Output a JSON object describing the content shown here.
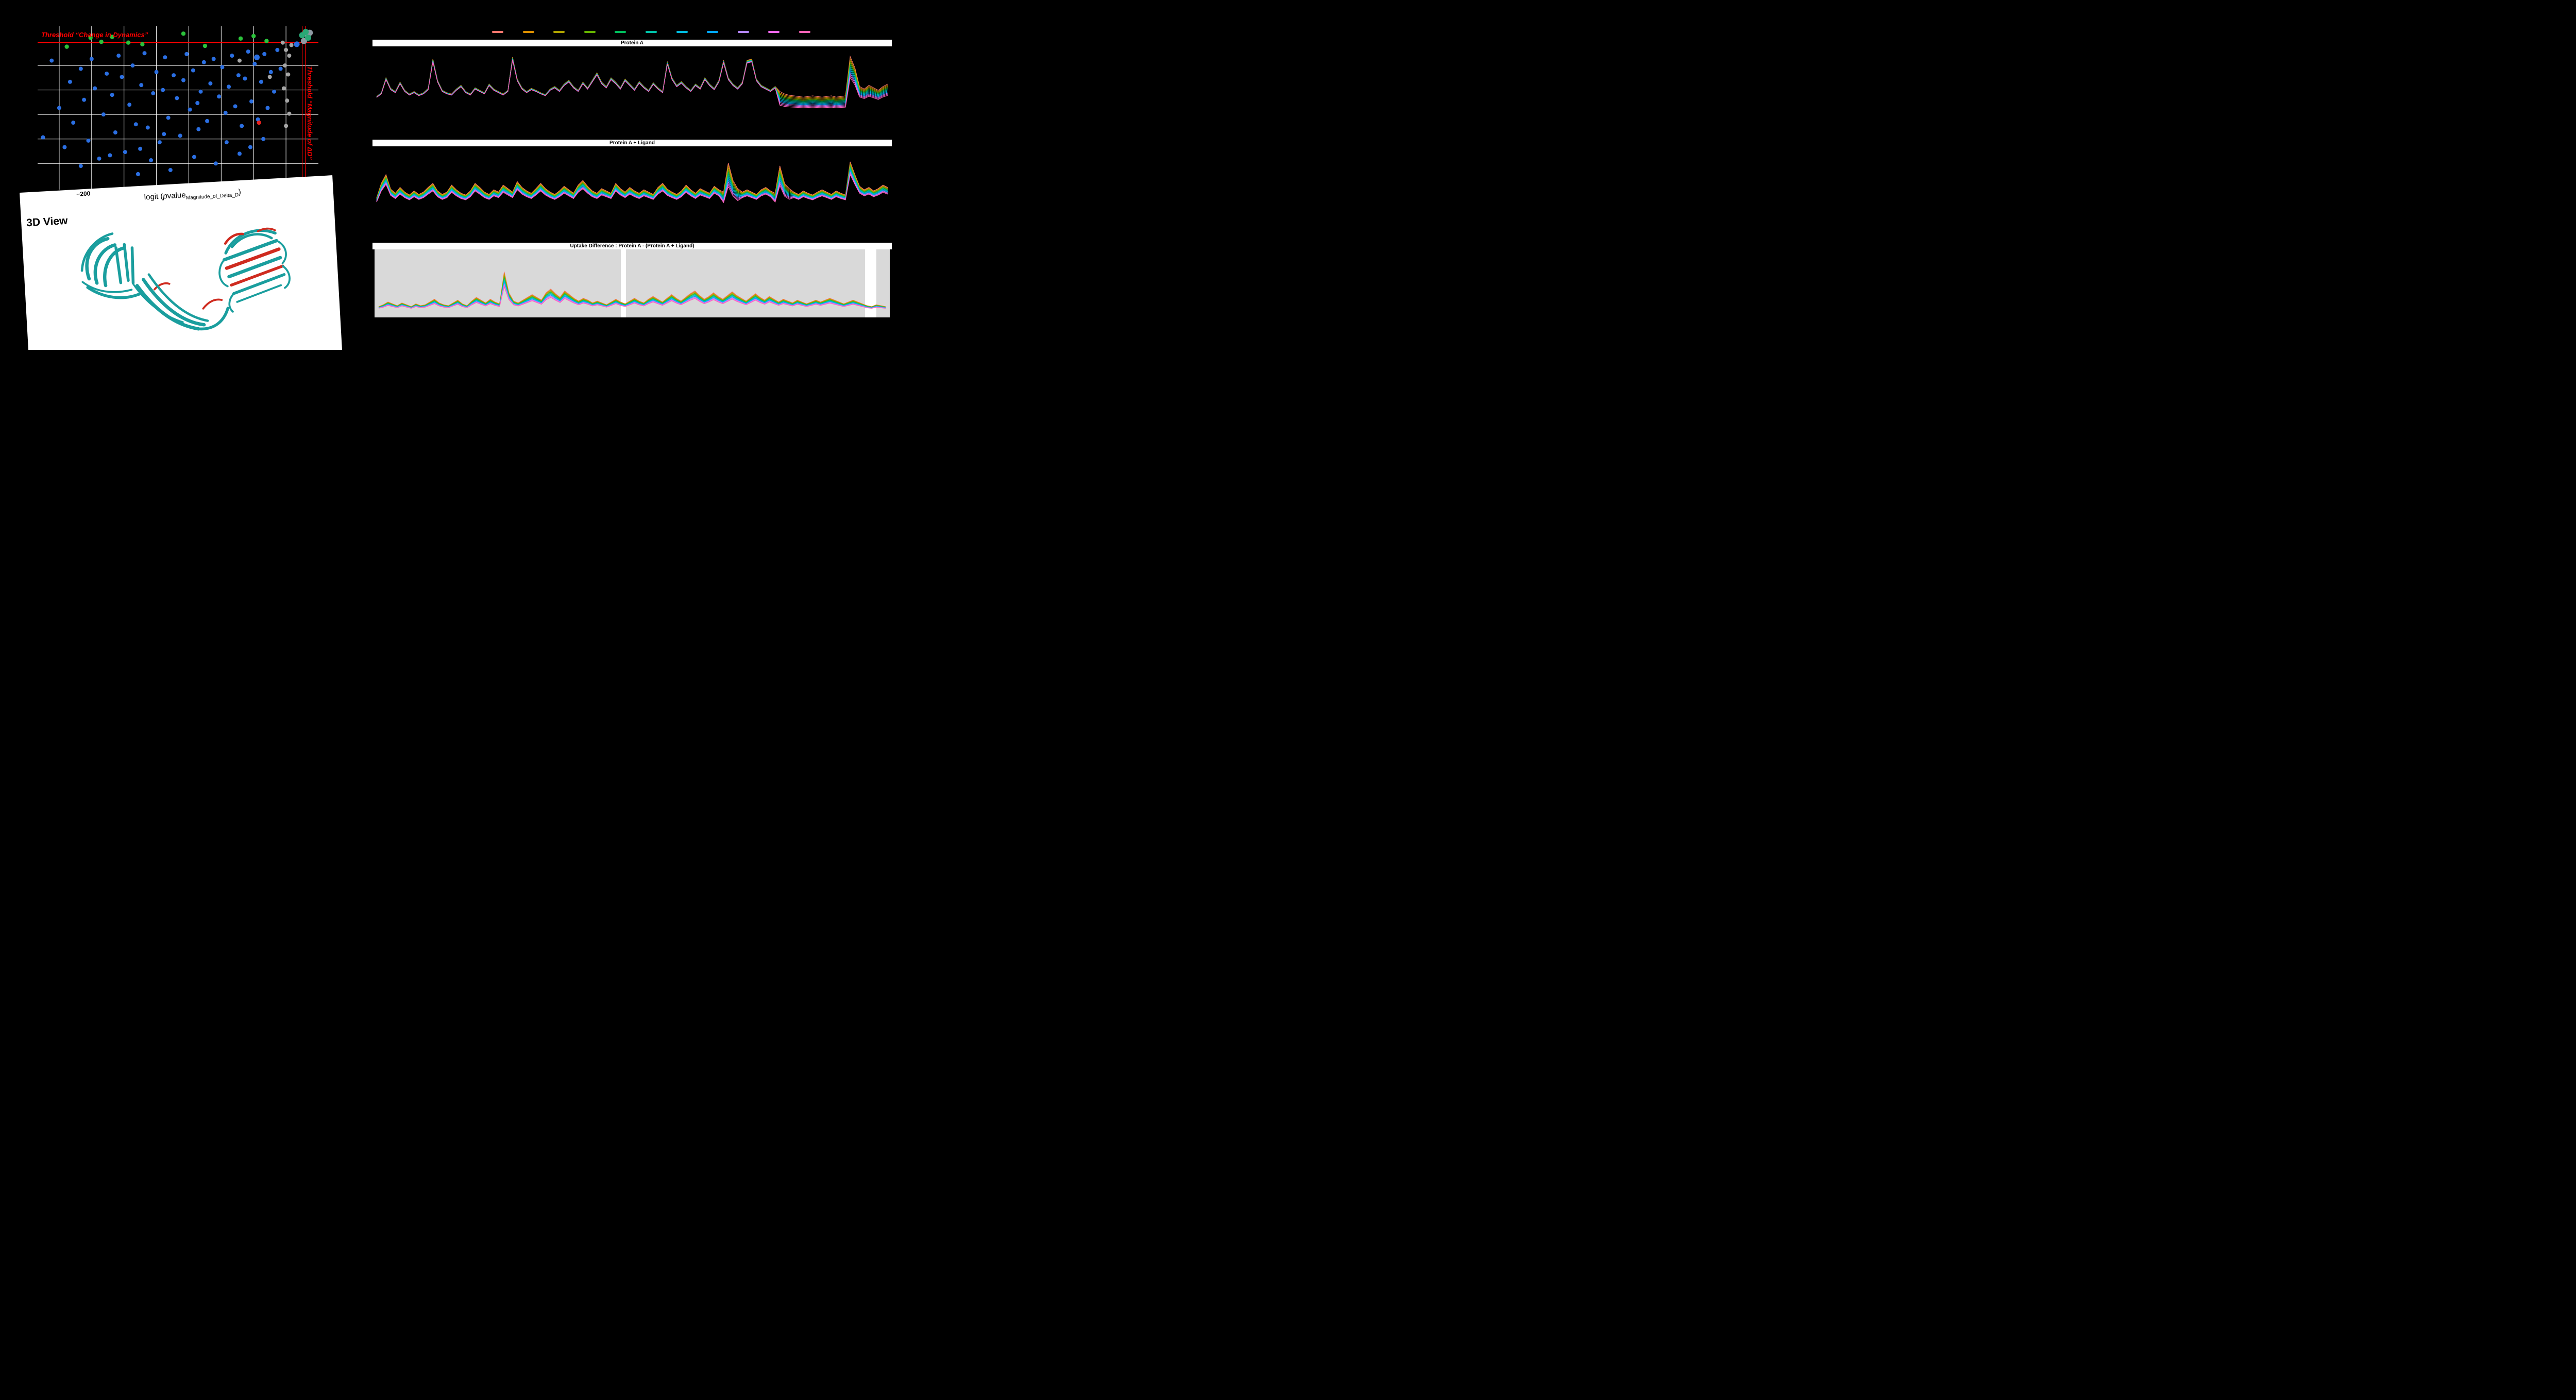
{
  "volcano": {
    "threshold_dynamics_label": "Threshold “Change in Dynamics”",
    "threshold_magnitude_label": "Threshold “Magnitude of ΔD”",
    "x_tick": "−200",
    "xlabel": {
      "pre": "logit (",
      "italic_p": "p",
      "mid": "value",
      "sub": "Magnitude_of_Delta_D",
      "post": ")"
    }
  },
  "view3d": {
    "title": "3D View",
    "ribbon_teal": "#1a9e9e",
    "ribbon_red": "#cf2b1f"
  },
  "panels": [
    {
      "title": "Protein A"
    },
    {
      "title": "Protein A + Ligand"
    },
    {
      "title": "Uptake Difference : Protein A - (Protein A + Ligand)"
    }
  ],
  "legend": {
    "colors": [
      "#F8766D",
      "#DB8E00",
      "#AEA200",
      "#64B200",
      "#00BD5C",
      "#00C1A7",
      "#00BADE",
      "#00A6FF",
      "#B385FF",
      "#EF67EB",
      "#FF63B6"
    ]
  },
  "chart_data": [
    {
      "type": "scatter",
      "name": "volcano-significance-plot",
      "xlabel": "logit (pvalue_Magnitude_of_Delta_D)",
      "ylabel": "",
      "xlim": [
        -245,
        15
      ],
      "ylim": [
        0,
        10
      ],
      "x_gridlines": [
        -225,
        -195,
        -165,
        -135,
        -105,
        -75,
        -45,
        -15
      ],
      "y_gridlines": [
        1.6,
        3.1,
        4.6,
        6.1,
        7.6
      ],
      "threshold_y": 9.0,
      "threshold_x": [
        0,
        3
      ],
      "grid_color": "#ffffff",
      "threshold_color": "#ff0000",
      "colors": {
        "blue": "#2b6fe3",
        "blue_large": "#2b6fe3",
        "green": "#2bc23a",
        "gray": "#a6a6a6",
        "red": "#e8211d",
        "cluster_green": "#2aa876",
        "cluster_gray": "#8f9aa3"
      },
      "points": {
        "blue": [
          [
            -240,
            3.2
          ],
          [
            -232,
            7.9
          ],
          [
            -225,
            5.0
          ],
          [
            -220,
            2.6
          ],
          [
            -215,
            6.6
          ],
          [
            -212,
            4.1
          ],
          [
            -205,
            7.4
          ],
          [
            -205,
            1.45
          ],
          [
            -202,
            5.5
          ],
          [
            -198,
            3.0
          ],
          [
            -195,
            8.0
          ],
          [
            -192,
            6.2
          ],
          [
            -188,
            1.9
          ],
          [
            -184,
            4.6
          ],
          [
            -181,
            7.1
          ],
          [
            -178,
            2.1
          ],
          [
            -176,
            5.8
          ],
          [
            -173,
            3.5
          ],
          [
            -170,
            8.2
          ],
          [
            -167,
            6.9
          ],
          [
            -164,
            2.3
          ],
          [
            -160,
            5.2
          ],
          [
            -157,
            7.6
          ],
          [
            -154,
            4.0
          ],
          [
            -152,
            0.95
          ],
          [
            -149,
            6.4
          ],
          [
            -146,
            8.35
          ],
          [
            -143,
            3.8
          ],
          [
            -140,
            1.8
          ],
          [
            -138,
            5.9
          ],
          [
            -135,
            7.2
          ],
          [
            -132,
            2.9
          ],
          [
            -129,
            6.1
          ],
          [
            -127,
            8.1
          ],
          [
            -124,
            4.4
          ],
          [
            -122,
            1.2
          ],
          [
            -119,
            7.0
          ],
          [
            -116,
            5.6
          ],
          [
            -113,
            3.3
          ],
          [
            -110,
            6.7
          ],
          [
            -107,
            8.3
          ],
          [
            -104,
            4.9
          ],
          [
            -101,
            7.3
          ],
          [
            -100,
            2.0
          ],
          [
            -97,
            5.3
          ],
          [
            -94,
            6.0
          ],
          [
            -91,
            7.8
          ],
          [
            -88,
            4.2
          ],
          [
            -85,
            6.5
          ],
          [
            -82,
            8.0
          ],
          [
            -80,
            1.6
          ],
          [
            -77,
            5.7
          ],
          [
            -74,
            7.5
          ],
          [
            -71,
            4.7
          ],
          [
            -68,
            6.3
          ],
          [
            -65,
            8.2
          ],
          [
            -62,
            5.1
          ],
          [
            -59,
            7.0
          ],
          [
            -56,
            3.9
          ],
          [
            -53,
            6.8
          ],
          [
            -50,
            8.45
          ],
          [
            -47,
            5.4
          ],
          [
            -44,
            7.7
          ],
          [
            -41,
            4.3
          ],
          [
            -38,
            6.6
          ],
          [
            -35,
            8.3
          ],
          [
            -32,
            5.0
          ],
          [
            -29,
            7.2
          ],
          [
            -26,
            6.0
          ],
          [
            -23,
            8.55
          ],
          [
            -20,
            7.4
          ],
          [
            -48,
            2.6
          ],
          [
            -36,
            3.1
          ],
          [
            -150,
            2.5
          ],
          [
            -128,
            3.4
          ],
          [
            -96,
            3.7
          ],
          [
            -70,
            2.9
          ],
          [
            -58,
            2.2
          ]
        ],
        "blue_large": [
          [
            -42,
            8.1
          ],
          [
            -5,
            8.9
          ]
        ],
        "green": [
          [
            -218,
            8.75
          ],
          [
            -196,
            9.3
          ],
          [
            -186,
            9.05
          ],
          [
            -176,
            9.35
          ],
          [
            -161,
            9.0
          ],
          [
            -148,
            8.9
          ],
          [
            -110,
            9.55
          ],
          [
            -90,
            8.8
          ],
          [
            -57,
            9.25
          ],
          [
            -45,
            9.4
          ],
          [
            -33,
            9.1
          ]
        ],
        "gray": [
          [
            -18,
            9.0
          ],
          [
            -15,
            8.55
          ],
          [
            -12,
            8.2
          ],
          [
            -16,
            7.6
          ],
          [
            -13,
            7.05
          ],
          [
            -17,
            6.2
          ],
          [
            -14,
            5.45
          ],
          [
            -12,
            4.65
          ],
          [
            -15,
            3.9
          ],
          [
            -10,
            8.85
          ],
          [
            -58,
            7.9
          ],
          [
            -30,
            6.9
          ]
        ],
        "red": [
          [
            -40,
            4.1
          ]
        ],
        "cluster_green": [
          [
            0,
            9.45
          ],
          [
            3.2,
            9.65
          ],
          [
            5.5,
            9.3
          ]
        ],
        "cluster_gray": [
          [
            1.6,
            9.1
          ],
          [
            4.6,
            9.5
          ],
          [
            7,
            9.6
          ]
        ]
      }
    },
    {
      "type": "line",
      "title": "Protein A",
      "x_range": [
        1,
        110
      ],
      "spread": 0.05,
      "spread_regions": [
        [
          86,
          100,
          0.55
        ],
        [
          101,
          109,
          0.35
        ]
      ],
      "amp": 1.0,
      "pad_top": 15,
      "pad_bottom": 30,
      "series_colors": [
        "#F8766D",
        "#DB8E00",
        "#AEA200",
        "#64B200",
        "#00BD5C",
        "#00C1A7",
        "#00BADE",
        "#00A6FF",
        "#B385FF",
        "#EF67EB",
        "#FF63B6"
      ],
      "base": [
        0.32,
        0.38,
        0.62,
        0.45,
        0.4,
        0.55,
        0.42,
        0.36,
        0.4,
        0.35,
        0.38,
        0.45,
        0.92,
        0.58,
        0.42,
        0.38,
        0.36,
        0.44,
        0.5,
        0.4,
        0.36,
        0.46,
        0.42,
        0.38,
        0.52,
        0.44,
        0.4,
        0.36,
        0.42,
        0.95,
        0.6,
        0.46,
        0.4,
        0.45,
        0.42,
        0.38,
        0.35,
        0.44,
        0.48,
        0.42,
        0.52,
        0.58,
        0.48,
        0.42,
        0.55,
        0.46,
        0.58,
        0.7,
        0.55,
        0.48,
        0.62,
        0.55,
        0.46,
        0.6,
        0.52,
        0.44,
        0.56,
        0.48,
        0.42,
        0.54,
        0.46,
        0.4,
        0.88,
        0.62,
        0.5,
        0.56,
        0.48,
        0.42,
        0.52,
        0.46,
        0.62,
        0.52,
        0.45,
        0.58,
        0.9,
        0.62,
        0.52,
        0.46,
        0.55,
        0.9,
        0.92,
        0.6,
        0.5,
        0.46,
        0.42,
        0.48,
        0.4,
        0.36,
        0.34,
        0.33,
        0.32,
        0.31,
        0.32,
        0.33,
        0.32,
        0.31,
        0.32,
        0.33,
        0.31,
        0.32,
        0.33,
        0.96,
        0.78,
        0.48,
        0.44,
        0.5,
        0.46,
        0.42,
        0.48,
        0.52
      ]
    },
    {
      "type": "line",
      "title": "Protein A + Ligand",
      "x_range": [
        1,
        110
      ],
      "spread": 0.24,
      "spread_regions": [
        [
          74,
          77,
          0.45
        ],
        [
          85,
          88,
          0.4
        ]
      ],
      "amp": 0.95,
      "pad_top": 15,
      "pad_bottom": 30,
      "series_colors": [
        "#F8766D",
        "#DB8E00",
        "#AEA200",
        "#64B200",
        "#00BD5C",
        "#00C1A7",
        "#00BADE",
        "#00A6FF",
        "#B385FF",
        "#EF67EB",
        "#FF63B6"
      ],
      "base": [
        0.3,
        0.55,
        0.7,
        0.45,
        0.38,
        0.48,
        0.4,
        0.35,
        0.42,
        0.36,
        0.4,
        0.48,
        0.55,
        0.42,
        0.36,
        0.4,
        0.52,
        0.44,
        0.38,
        0.35,
        0.42,
        0.55,
        0.48,
        0.4,
        0.36,
        0.44,
        0.4,
        0.52,
        0.46,
        0.4,
        0.58,
        0.48,
        0.42,
        0.38,
        0.46,
        0.55,
        0.46,
        0.4,
        0.36,
        0.42,
        0.5,
        0.44,
        0.38,
        0.52,
        0.6,
        0.5,
        0.42,
        0.38,
        0.46,
        0.42,
        0.38,
        0.55,
        0.46,
        0.4,
        0.48,
        0.42,
        0.38,
        0.44,
        0.4,
        0.36,
        0.48,
        0.55,
        0.45,
        0.4,
        0.36,
        0.42,
        0.52,
        0.44,
        0.38,
        0.46,
        0.42,
        0.38,
        0.5,
        0.44,
        0.4,
        0.9,
        0.6,
        0.46,
        0.4,
        0.44,
        0.4,
        0.36,
        0.44,
        0.48,
        0.42,
        0.38,
        0.85,
        0.55,
        0.46,
        0.4,
        0.36,
        0.42,
        0.38,
        0.35,
        0.4,
        0.44,
        0.4,
        0.36,
        0.42,
        0.38,
        0.35,
        0.92,
        0.7,
        0.5,
        0.44,
        0.48,
        0.42,
        0.46,
        0.52,
        0.48
      ]
    },
    {
      "type": "line",
      "title": "Uptake Difference : Protein A - (Protein A + Ligand)",
      "x_range": [
        1,
        110
      ],
      "spread": 0.38,
      "spread_regions": [],
      "amp": 0.85,
      "pad_top": 14,
      "pad_bottom": 12,
      "bg": "#d9d9d9",
      "bg_gaps": [
        [
          0.478,
          0.01
        ],
        [
          0.952,
          0.022
        ]
      ],
      "series_colors": [
        "#F8766D",
        "#DB8E00",
        "#AEA200",
        "#64B200",
        "#00BD5C",
        "#00C1A7",
        "#00BADE",
        "#00A6FF",
        "#B385FF",
        "#EF67EB",
        "#FF63B6"
      ],
      "base": [
        0.1,
        0.14,
        0.2,
        0.16,
        0.12,
        0.18,
        0.14,
        0.1,
        0.16,
        0.12,
        0.14,
        0.2,
        0.26,
        0.18,
        0.14,
        0.12,
        0.18,
        0.24,
        0.16,
        0.12,
        0.22,
        0.3,
        0.24,
        0.18,
        0.26,
        0.2,
        0.16,
        0.85,
        0.4,
        0.22,
        0.18,
        0.24,
        0.3,
        0.36,
        0.3,
        0.24,
        0.4,
        0.48,
        0.38,
        0.3,
        0.44,
        0.36,
        0.28,
        0.22,
        0.28,
        0.24,
        0.18,
        0.22,
        0.18,
        0.14,
        0.2,
        0.26,
        0.2,
        0.16,
        0.22,
        0.28,
        0.22,
        0.18,
        0.26,
        0.32,
        0.26,
        0.2,
        0.28,
        0.36,
        0.28,
        0.22,
        0.3,
        0.38,
        0.44,
        0.34,
        0.26,
        0.32,
        0.4,
        0.32,
        0.26,
        0.34,
        0.42,
        0.34,
        0.28,
        0.22,
        0.3,
        0.38,
        0.3,
        0.24,
        0.32,
        0.26,
        0.2,
        0.26,
        0.22,
        0.18,
        0.24,
        0.2,
        0.16,
        0.2,
        0.24,
        0.2,
        0.24,
        0.28,
        0.24,
        0.2,
        0.16,
        0.2,
        0.24,
        0.2,
        0.16,
        0.12,
        0.1,
        0.14,
        0.12,
        0.1
      ]
    }
  ]
}
